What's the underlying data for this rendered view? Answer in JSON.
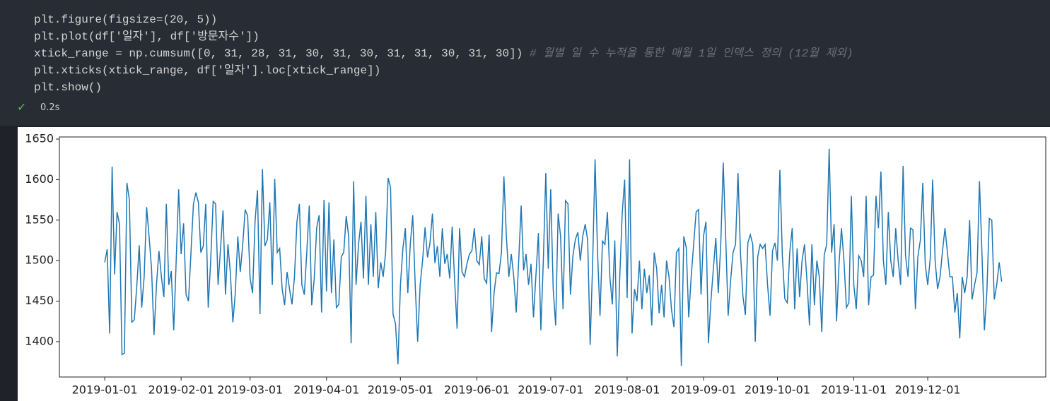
{
  "cell": {
    "code_lines": [
      "plt.figure(figsize=(20, 5))",
      "plt.plot(df['일자'], df['방문자수'])",
      "xtick_range = np.cumsum([0, 31, 28, 31, 30, 31, 30, 31, 31, 30, 31, 30])",
      "plt.xticks(xtick_range, df['일자'].loc[xtick_range])",
      "plt.show()"
    ],
    "comment": "# 월별 일 수 누적을 통한 매월 1일 인덱스 정의 (12월 제외)",
    "status": "✓",
    "duration": "0.2s"
  },
  "chart_data": {
    "type": "line",
    "series": [
      {
        "color": "#1f77b4",
        "values": [
          1498,
          1514,
          1410,
          1616,
          1483,
          1560,
          1545,
          1384,
          1386,
          1596,
          1575,
          1424,
          1427,
          1468,
          1519,
          1442,
          1480,
          1566,
          1530,
          1490,
          1408,
          1470,
          1512,
          1480,
          1455,
          1570,
          1470,
          1487,
          1414,
          1500,
          1588,
          1508,
          1546,
          1458,
          1450,
          1510,
          1570,
          1584,
          1572,
          1510,
          1518,
          1570,
          1442,
          1500,
          1573,
          1570,
          1470,
          1515,
          1562,
          1458,
          1520,
          1484,
          1424,
          1460,
          1530,
          1486,
          1520,
          1563,
          1555,
          1478,
          1460,
          1548,
          1587,
          1434,
          1613,
          1518,
          1526,
          1572,
          1470,
          1601,
          1510,
          1515,
          1465,
          1445,
          1486,
          1465,
          1446,
          1480,
          1548,
          1570,
          1470,
          1458,
          1510,
          1568,
          1445,
          1477,
          1540,
          1556,
          1436,
          1575,
          1462,
          1572,
          1460,
          1526,
          1442,
          1446,
          1505,
          1510,
          1555,
          1530,
          1398,
          1598,
          1470,
          1520,
          1548,
          1478,
          1580,
          1470,
          1545,
          1480,
          1560,
          1466,
          1498,
          1480,
          1510,
          1602,
          1590,
          1434,
          1422,
          1372,
          1470,
          1515,
          1540,
          1460,
          1520,
          1556,
          1470,
          1400,
          1470,
          1500,
          1541,
          1504,
          1522,
          1558,
          1497,
          1518,
          1480,
          1540,
          1496,
          1508,
          1478,
          1542,
          1475,
          1416,
          1540,
          1486,
          1480,
          1496,
          1508,
          1512,
          1540,
          1500,
          1495,
          1530,
          1478,
          1472,
          1532,
          1412,
          1460,
          1485,
          1484,
          1510,
          1604,
          1530,
          1480,
          1508,
          1480,
          1436,
          1500,
          1568,
          1488,
          1508,
          1470,
          1496,
          1430,
          1482,
          1534,
          1414,
          1500,
          1608,
          1490,
          1588,
          1465,
          1420,
          1558,
          1530,
          1440,
          1574,
          1570,
          1458,
          1506,
          1526,
          1535,
          1500,
          1530,
          1545,
          1525,
          1396,
          1496,
          1625,
          1510,
          1432,
          1524,
          1520,
          1560,
          1480,
          1446,
          1525,
          1382,
          1478,
          1558,
          1600,
          1454,
          1625,
          1410,
          1465,
          1450,
          1500,
          1440,
          1490,
          1460,
          1482,
          1420,
          1510,
          1490,
          1435,
          1470,
          1430,
          1500,
          1480,
          1440,
          1418,
          1510,
          1515,
          1370,
          1530,
          1516,
          1430,
          1480,
          1520,
          1560,
          1563,
          1458,
          1530,
          1548,
          1398,
          1450,
          1490,
          1528,
          1460,
          1520,
          1621,
          1530,
          1432,
          1475,
          1510,
          1520,
          1608,
          1510,
          1456,
          1433,
          1522,
          1532,
          1520,
          1400,
          1505,
          1520,
          1515,
          1520,
          1470,
          1432,
          1512,
          1522,
          1500,
          1612,
          1506,
          1453,
          1448,
          1510,
          1540,
          1440,
          1515,
          1455,
          1500,
          1520,
          1475,
          1420,
          1520,
          1445,
          1500,
          1480,
          1412,
          1507,
          1520,
          1638,
          1510,
          1545,
          1425,
          1496,
          1540,
          1500,
          1442,
          1448,
          1580,
          1470,
          1440,
          1506,
          1500,
          1480,
          1580,
          1445,
          1480,
          1482,
          1580,
          1540,
          1610,
          1500,
          1470,
          1560,
          1500,
          1480,
          1540,
          1500,
          1470,
          1617,
          1506,
          1480,
          1540,
          1538,
          1440,
          1505,
          1525,
          1596,
          1495,
          1470,
          1502,
          1600,
          1500,
          1465,
          1480,
          1512,
          1540,
          1510,
          1480,
          1480,
          1436,
          1460,
          1404,
          1480,
          1460,
          1480,
          1550,
          1452,
          1470,
          1485,
          1598,
          1510,
          1414,
          1462,
          1552,
          1550,
          1452,
          1470,
          1498,
          1474
        ]
      }
    ],
    "xlim": [
      -18.4,
      381.9
    ],
    "xticks": [
      {
        "value": 0,
        "label": "2019-01-01"
      },
      {
        "value": 31,
        "label": "2019-02-01"
      },
      {
        "value": 59,
        "label": "2019-03-01"
      },
      {
        "value": 90,
        "label": "2019-04-01"
      },
      {
        "value": 120,
        "label": "2019-05-01"
      },
      {
        "value": 151,
        "label": "2019-06-01"
      },
      {
        "value": 181,
        "label": "2019-07-01"
      },
      {
        "value": 212,
        "label": "2019-08-01"
      },
      {
        "value": 243,
        "label": "2019-09-01"
      },
      {
        "value": 273,
        "label": "2019-10-01"
      },
      {
        "value": 304,
        "label": "2019-11-01"
      },
      {
        "value": 334,
        "label": "2019-12-01"
      }
    ],
    "ylim": [
      1356.4,
      1652.6
    ],
    "yticks": [
      1400,
      1450,
      1500,
      1550,
      1600,
      1650
    ],
    "grid": false
  }
}
